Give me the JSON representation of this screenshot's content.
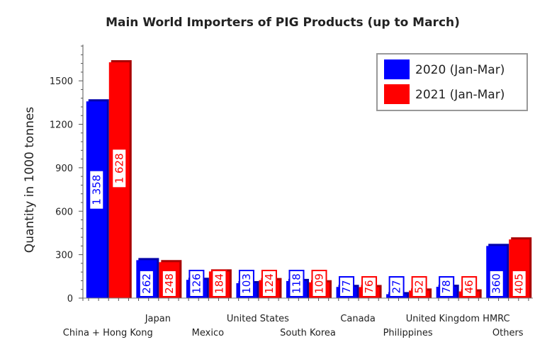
{
  "chart_data": {
    "type": "bar",
    "title": "Main World Importers of PIG Products (up to March)",
    "xlabel": "",
    "ylabel": "Quantity in 1000 tonnes",
    "ylim": [
      0,
      1750
    ],
    "yticks": [
      0,
      300,
      600,
      900,
      1200,
      1500
    ],
    "grid": false,
    "legend_position": "top-right",
    "categories": [
      "China + Hong Kong",
      "Japan",
      "Mexico",
      "United States",
      "South Korea",
      "Canada",
      "Philippines",
      "United Kingdom HMRC",
      "Others"
    ],
    "series": [
      {
        "name": "2020 (Jan-Mar)",
        "color": "#0000ff",
        "values": [
          1358,
          262,
          126,
          103,
          118,
          77,
          27,
          78,
          360
        ],
        "labels": [
          "1 358",
          "262",
          "126",
          "103",
          "118",
          "77",
          "27",
          "78",
          "360"
        ]
      },
      {
        "name": "2021 (Jan-Mar)",
        "color": "#ff0000",
        "values": [
          1628,
          248,
          184,
          124,
          109,
          76,
          52,
          46,
          405
        ],
        "labels": [
          "1 628",
          "248",
          "184",
          "124",
          "109",
          "76",
          "52",
          "46",
          "405"
        ]
      }
    ]
  }
}
